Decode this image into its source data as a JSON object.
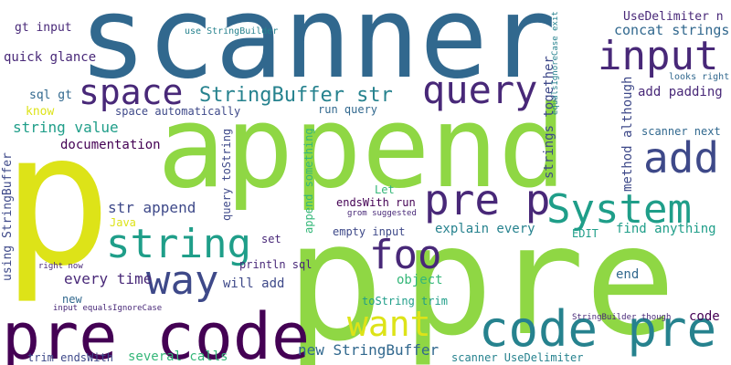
{
  "colors": {
    "background": "#ffffff",
    "dark_purple": "#440154",
    "purple": "#482878",
    "indigo": "#3e4989",
    "blue": "#31688e",
    "teal": "#26828e",
    "green_teal": "#1f9e89",
    "green": "#35b779",
    "lime": "#8fd744",
    "yellow": "#dde318"
  },
  "words": [
    {
      "id": "scanner",
      "text": "scanner",
      "color": "blue"
    },
    {
      "id": "append",
      "text": "append",
      "color": "lime"
    },
    {
      "id": "p-big",
      "text": "p",
      "color": "yellow"
    },
    {
      "id": "pre-big",
      "text": "pre",
      "color": "lime"
    },
    {
      "id": "p-mid",
      "text": "p",
      "color": "lime"
    },
    {
      "id": "pre-code-bl",
      "text": "pre code",
      "color": "dark_purple"
    },
    {
      "id": "code-pre",
      "text": "code pre",
      "color": "teal"
    },
    {
      "id": "input-big",
      "text": "input",
      "color": "purple"
    },
    {
      "id": "query",
      "text": "query",
      "color": "purple"
    },
    {
      "id": "space",
      "text": "space",
      "color": "purple"
    },
    {
      "id": "stringbuffer-str",
      "text": "StringBuffer str",
      "color": "teal"
    },
    {
      "id": "add",
      "text": "add",
      "color": "indigo"
    },
    {
      "id": "pre-p",
      "text": "pre p",
      "color": "purple"
    },
    {
      "id": "system",
      "text": "System",
      "color": "green_teal"
    },
    {
      "id": "string",
      "text": "string",
      "color": "green_teal"
    },
    {
      "id": "way",
      "text": "way",
      "color": "indigo"
    },
    {
      "id": "foo",
      "text": "foo",
      "color": "purple"
    },
    {
      "id": "want",
      "text": "want",
      "color": "yellow"
    },
    {
      "id": "gt-input",
      "text": "gt input",
      "color": "purple"
    },
    {
      "id": "quick-glance",
      "text": "quick glance",
      "color": "purple"
    },
    {
      "id": "use-stringbuilder",
      "text": "use StringBuilder",
      "color": "teal"
    },
    {
      "id": "sql-gt",
      "text": "sql gt",
      "color": "blue"
    },
    {
      "id": "know",
      "text": "know",
      "color": "yellow"
    },
    {
      "id": "string-value",
      "text": "string value",
      "color": "green_teal"
    },
    {
      "id": "documentation",
      "text": "documentation",
      "color": "dark_purple"
    },
    {
      "id": "space-automatically",
      "text": "space automatically",
      "color": "indigo"
    },
    {
      "id": "run-query",
      "text": "run query",
      "color": "blue"
    },
    {
      "id": "usedelimiter-n",
      "text": "UseDelimiter n",
      "color": "purple"
    },
    {
      "id": "concat-strings",
      "text": "concat strings",
      "color": "blue"
    },
    {
      "id": "add-padding",
      "text": "add padding",
      "color": "purple"
    },
    {
      "id": "looks-right",
      "text": "looks right",
      "color": "blue"
    },
    {
      "id": "scanner-next",
      "text": "scanner next",
      "color": "blue"
    },
    {
      "id": "str-append",
      "text": "str append",
      "color": "indigo"
    },
    {
      "id": "let",
      "text": "Let",
      "color": "green"
    },
    {
      "id": "endswith-run",
      "text": "endsWith run",
      "color": "dark_purple"
    },
    {
      "id": "grom-suggested",
      "text": "grom suggested",
      "color": "purple"
    },
    {
      "id": "java",
      "text": "Java",
      "color": "yellow"
    },
    {
      "id": "set",
      "text": "set",
      "color": "purple"
    },
    {
      "id": "empty-input",
      "text": "empty input",
      "color": "indigo"
    },
    {
      "id": "explain-every",
      "text": "explain every",
      "color": "teal"
    },
    {
      "id": "edit",
      "text": "EDIT",
      "color": "green_teal"
    },
    {
      "id": "find-anything",
      "text": "find anything",
      "color": "green_teal"
    },
    {
      "id": "every-time",
      "text": "every time",
      "color": "purple"
    },
    {
      "id": "println-sql",
      "text": "println sql",
      "color": "purple"
    },
    {
      "id": "right-now",
      "text": "right now",
      "color": "purple"
    },
    {
      "id": "will-add",
      "text": "will add",
      "color": "indigo"
    },
    {
      "id": "object",
      "text": "object",
      "color": "green"
    },
    {
      "id": "end",
      "text": "end",
      "color": "blue"
    },
    {
      "id": "new",
      "text": "new",
      "color": "blue"
    },
    {
      "id": "input-equalsignorecase",
      "text": "input equalsIgnoreCase",
      "color": "purple"
    },
    {
      "id": "tostring-trim",
      "text": "toString trim",
      "color": "green_teal"
    },
    {
      "id": "stringbuilder-though",
      "text": "StringBuilder though",
      "color": "purple"
    },
    {
      "id": "code-small",
      "text": "code",
      "color": "dark_purple"
    },
    {
      "id": "new-stringbuffer",
      "text": "new StringBuffer",
      "color": "blue"
    },
    {
      "id": "trim-endswith",
      "text": "trim endsWith",
      "color": "indigo"
    },
    {
      "id": "several-calls",
      "text": "several calls",
      "color": "green"
    },
    {
      "id": "scanner-usedelimiter",
      "text": "scanner UseDelimiter",
      "color": "teal"
    },
    {
      "id": "using-stringbuffer",
      "text": "using StringBuffer",
      "color": "indigo"
    },
    {
      "id": "query-tostring",
      "text": "query toString",
      "color": "indigo"
    },
    {
      "id": "append-something",
      "text": "append something",
      "color": "green"
    },
    {
      "id": "strings-together",
      "text": "strings together",
      "color": "indigo"
    },
    {
      "id": "method-although",
      "text": "method although",
      "color": "indigo"
    },
    {
      "id": "equalsignorecase-exit",
      "text": "equalsIgnoreCase exit",
      "color": "teal"
    }
  ]
}
